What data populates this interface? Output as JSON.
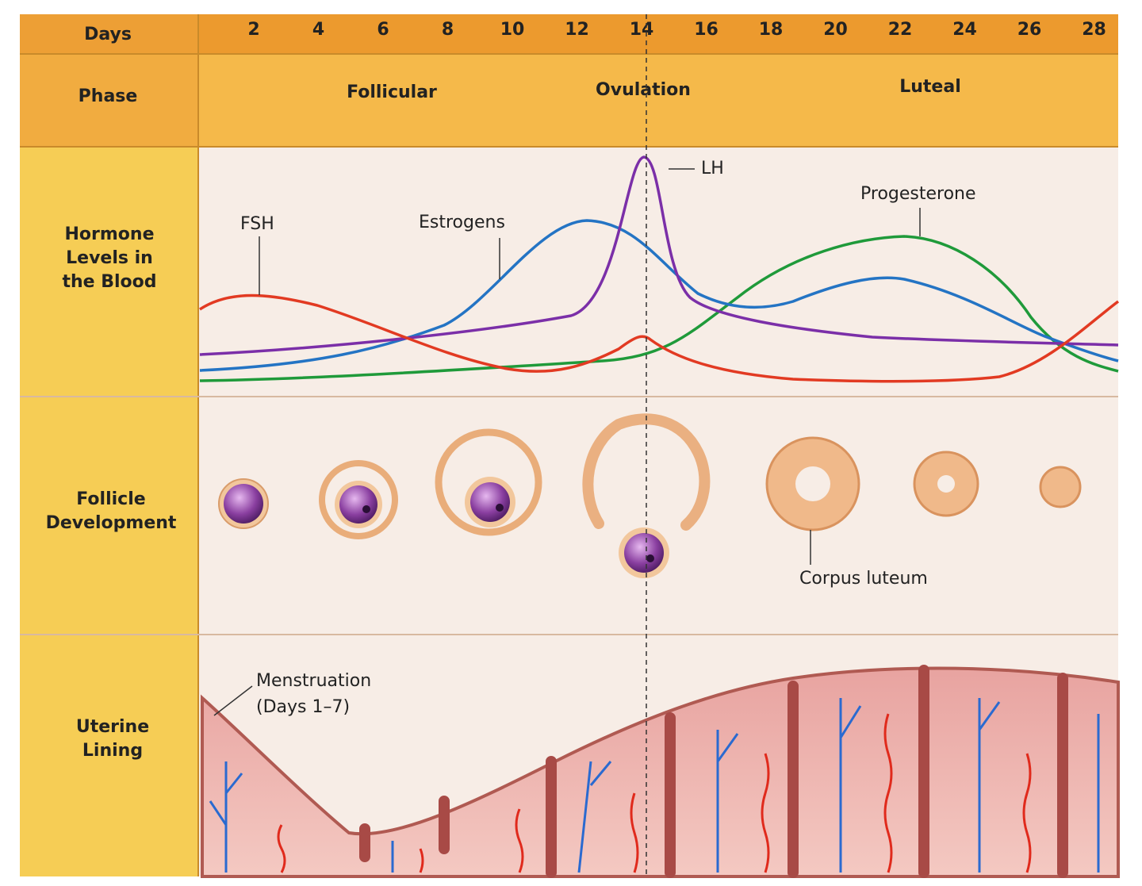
{
  "header": {
    "days_label": "Days",
    "days": [
      "2",
      "4",
      "6",
      "8",
      "10",
      "12",
      "14",
      "16",
      "18",
      "20",
      "22",
      "24",
      "26",
      "28"
    ]
  },
  "phase": {
    "label": "Phase",
    "follicular": "Follicular",
    "ovulation": "Ovulation",
    "luteal": "Luteal"
  },
  "rows": {
    "hormones": [
      "Hormone",
      "Levels in",
      "the Blood"
    ],
    "follicle": [
      "Follicle",
      "Development"
    ],
    "uterine": [
      "Uterine",
      "Lining"
    ]
  },
  "hormones": {
    "fsh": "FSH",
    "estrogens": "Estrogens",
    "lh": "LH",
    "progesterone": "Progesterone"
  },
  "follicle": {
    "corpus_luteum": "Corpus luteum"
  },
  "uterine": {
    "menstruation": "Menstruation",
    "days": "(Days 1–7)"
  }
}
